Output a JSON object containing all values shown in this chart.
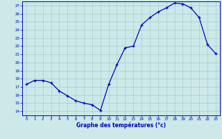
{
  "x": [
    0,
    1,
    2,
    3,
    4,
    5,
    6,
    7,
    8,
    9,
    10,
    11,
    12,
    13,
    14,
    15,
    16,
    17,
    18,
    19,
    20,
    21,
    22,
    23
  ],
  "y": [
    17.3,
    17.8,
    17.8,
    17.5,
    16.5,
    15.9,
    15.3,
    15.0,
    14.8,
    14.1,
    17.3,
    19.7,
    21.8,
    22.0,
    24.6,
    25.5,
    26.2,
    26.7,
    27.3,
    27.2,
    26.7,
    25.5,
    22.2,
    21.1
  ],
  "ylim": [
    13.5,
    27.5
  ],
  "xlim": [
    -0.5,
    23.5
  ],
  "yticks": [
    14,
    15,
    16,
    17,
    18,
    19,
    20,
    21,
    22,
    23,
    24,
    25,
    26,
    27
  ],
  "xticks": [
    0,
    1,
    2,
    3,
    4,
    5,
    6,
    7,
    8,
    9,
    10,
    11,
    12,
    13,
    14,
    15,
    16,
    17,
    18,
    19,
    20,
    21,
    22,
    23
  ],
  "xlabel": "Graphe des températures (°c)",
  "line_color": "#0000bb",
  "marker": "+",
  "bg_color": "#cce8e8",
  "plot_bg_color": "#cce8e8",
  "grid_color": "#aacccc",
  "axis_label_color": "#0000bb",
  "tick_color": "#0000bb",
  "tick_fontsize": 4.0,
  "xlabel_fontsize": 5.5
}
